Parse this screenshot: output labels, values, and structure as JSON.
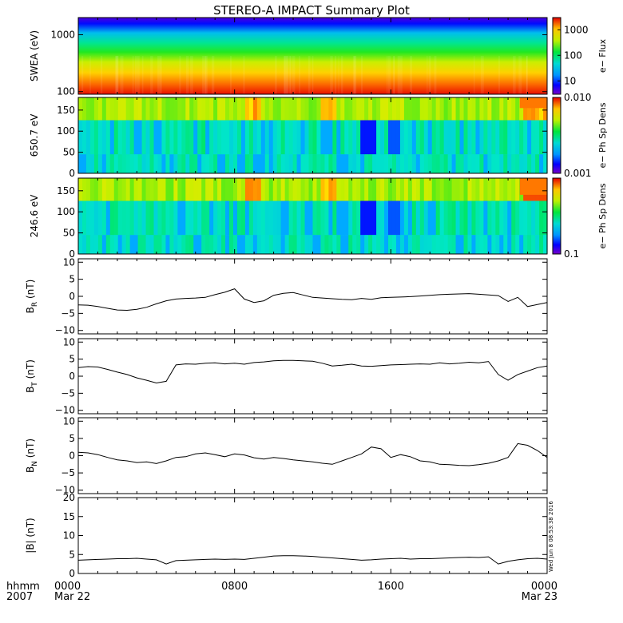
{
  "title": "STEREO-A IMPACT Summary Plot",
  "footer": {
    "format_label": "hhmm",
    "year_label": "2007",
    "stamp": "Wed Jun  8 08:53:38 2016"
  },
  "chart_data": [
    {
      "type": "heatmap",
      "id": "swea",
      "ylabel": "SWEA (eV)",
      "yscale": "log",
      "ylim": [
        90,
        2000
      ],
      "yticks": [
        {
          "value": 1000,
          "label": "1000"
        },
        {
          "value": 100,
          "label": "100"
        }
      ],
      "colorbar": {
        "label": "e− Flux",
        "scale": "log",
        "range": [
          3,
          3000
        ],
        "ticks": [
          {
            "value": 1000,
            "label": "1000"
          },
          {
            "value": 100,
            "label": "100"
          },
          {
            "value": 10,
            "label": "10"
          }
        ]
      }
    },
    {
      "type": "heatmap",
      "id": "pad650",
      "ylabel": "650.7 eV",
      "ylim": [
        0,
        180
      ],
      "yticks": [
        {
          "value": 150,
          "label": "150"
        },
        {
          "value": 100,
          "label": "100"
        },
        {
          "value": 50,
          "label": "50"
        },
        {
          "value": 0,
          "label": "0"
        }
      ],
      "colorbar": {
        "label": "e− Ph Sp Dens",
        "scale": "log",
        "range": [
          0.001,
          0.01
        ],
        "ticks": [
          {
            "value": 0.01,
            "label": "0.010"
          },
          {
            "value": 0.001,
            "label": "0.001"
          }
        ]
      }
    },
    {
      "type": "heatmap",
      "id": "pad246",
      "ylabel": "246.6 eV",
      "ylim": [
        0,
        180
      ],
      "yticks": [
        {
          "value": 150,
          "label": "150"
        },
        {
          "value": 100,
          "label": "100"
        },
        {
          "value": 50,
          "label": "50"
        },
        {
          "value": 0,
          "label": "0"
        }
      ],
      "colorbar": {
        "label": "e− Ph Sp Dens",
        "scale": "log",
        "range": [
          0.1,
          1
        ],
        "ticks": [
          {
            "value": 0.1,
            "label": "0.1"
          }
        ]
      }
    },
    {
      "type": "line",
      "id": "br",
      "ylabel": "B",
      "ylabel_sub": "R",
      "ylabel_suffix": " (nT)",
      "ylim": [
        -11,
        11
      ],
      "yticks": [
        {
          "value": 10,
          "label": "10"
        },
        {
          "value": 5,
          "label": "5"
        },
        {
          "value": 0,
          "label": "0"
        },
        {
          "value": -5,
          "label": "−5"
        },
        {
          "value": -10,
          "label": "−10"
        }
      ],
      "x_hours": [
        0,
        0.5,
        1,
        1.5,
        2,
        2.5,
        3,
        3.5,
        4,
        4.5,
        5,
        5.5,
        6,
        6.5,
        7,
        7.5,
        8,
        8.5,
        9,
        9.5,
        10,
        10.5,
        11,
        11.5,
        12,
        12.5,
        13,
        13.5,
        14,
        14.5,
        15,
        15.5,
        16,
        16.5,
        17,
        17.5,
        18,
        18.5,
        19,
        19.5,
        20,
        20.5,
        21,
        21.5,
        22,
        22.5,
        23,
        23.5,
        24
      ],
      "y": [
        -2.5,
        -2.6,
        -3.0,
        -3.5,
        -4.0,
        -4.1,
        -3.8,
        -3.2,
        -2.2,
        -1.3,
        -0.8,
        -0.6,
        -0.5,
        -0.3,
        0.5,
        1.2,
        2.2,
        -0.8,
        -1.8,
        -1.3,
        0.3,
        0.9,
        1.1,
        0.4,
        -0.3,
        -0.5,
        -0.7,
        -0.9,
        -1.0,
        -0.6,
        -0.9,
        -0.4,
        -0.3,
        -0.2,
        -0.1,
        0.1,
        0.3,
        0.5,
        0.6,
        0.7,
        0.8,
        0.6,
        0.4,
        0.2,
        -1.5,
        -0.3,
        -3.0,
        -2.4,
        -1.8
      ]
    },
    {
      "type": "line",
      "id": "bt",
      "ylabel": "B",
      "ylabel_sub": "T",
      "ylabel_suffix": " (nT)",
      "ylim": [
        -11,
        11
      ],
      "yticks": [
        {
          "value": 10,
          "label": "10"
        },
        {
          "value": 5,
          "label": "5"
        },
        {
          "value": 0,
          "label": "0"
        },
        {
          "value": -5,
          "label": "−5"
        },
        {
          "value": -10,
          "label": "−10"
        }
      ],
      "x_hours": [
        0,
        0.5,
        1,
        1.5,
        2,
        2.5,
        3,
        3.5,
        4,
        4.5,
        5,
        5.5,
        6,
        6.5,
        7,
        7.5,
        8,
        8.5,
        9,
        9.5,
        10,
        10.5,
        11,
        11.5,
        12,
        12.5,
        13,
        13.5,
        14,
        14.5,
        15,
        15.5,
        16,
        16.5,
        17,
        17.5,
        18,
        18.5,
        19,
        19.5,
        20,
        20.5,
        21,
        21.5,
        22,
        22.5,
        23,
        23.5,
        24
      ],
      "y": [
        2.5,
        2.8,
        2.7,
        2.0,
        1.2,
        0.5,
        -0.5,
        -1.2,
        -2.0,
        -1.5,
        3.3,
        3.6,
        3.5,
        3.8,
        3.9,
        3.6,
        3.8,
        3.5,
        4.0,
        4.2,
        4.5,
        4.6,
        4.6,
        4.5,
        4.4,
        3.8,
        3.0,
        3.2,
        3.5,
        3.0,
        2.9,
        3.1,
        3.3,
        3.4,
        3.5,
        3.6,
        3.5,
        3.9,
        3.6,
        3.8,
        4.1,
        3.9,
        4.3,
        0.5,
        -1.2,
        0.5,
        1.5,
        2.5,
        3.0
      ]
    },
    {
      "type": "line",
      "id": "bn",
      "ylabel": "B",
      "ylabel_sub": "N",
      "ylabel_suffix": " (nT)",
      "ylim": [
        -11,
        11
      ],
      "yticks": [
        {
          "value": 10,
          "label": "10"
        },
        {
          "value": 5,
          "label": "5"
        },
        {
          "value": 0,
          "label": "0"
        },
        {
          "value": -5,
          "label": "−5"
        },
        {
          "value": -10,
          "label": "−10"
        }
      ],
      "x_hours": [
        0,
        0.5,
        1,
        1.5,
        2,
        2.5,
        3,
        3.5,
        4,
        4.5,
        5,
        5.5,
        6,
        6.5,
        7,
        7.5,
        8,
        8.5,
        9,
        9.5,
        10,
        10.5,
        11,
        11.5,
        12,
        12.5,
        13,
        13.5,
        14,
        14.5,
        15,
        15.5,
        16,
        16.5,
        17,
        17.5,
        18,
        18.5,
        19,
        19.5,
        20,
        20.5,
        21,
        21.5,
        22,
        22.5,
        23,
        23.5,
        24
      ],
      "y": [
        1.0,
        0.8,
        0.3,
        -0.5,
        -1.2,
        -1.5,
        -2.0,
        -1.8,
        -2.3,
        -1.5,
        -0.5,
        -0.3,
        0.5,
        0.8,
        0.3,
        -0.3,
        0.5,
        0.2,
        -0.6,
        -1.0,
        -0.5,
        -0.8,
        -1.2,
        -1.5,
        -1.8,
        -2.2,
        -2.5,
        -1.5,
        -0.5,
        0.5,
        2.5,
        2.0,
        -0.5,
        0.3,
        -0.3,
        -1.5,
        -1.8,
        -2.5,
        -2.6,
        -2.8,
        -2.9,
        -2.6,
        -2.2,
        -1.5,
        -0.5,
        3.5,
        3.0,
        1.5,
        -0.5
      ]
    },
    {
      "type": "line",
      "id": "bmag",
      "ylabel": "|B| (nT)",
      "ylim": [
        0,
        20
      ],
      "yticks": [
        {
          "value": 20,
          "label": "20"
        },
        {
          "value": 15,
          "label": "15"
        },
        {
          "value": 10,
          "label": "10"
        },
        {
          "value": 5,
          "label": "5"
        },
        {
          "value": 0,
          "label": "0"
        }
      ],
      "x_hours": [
        0,
        0.5,
        1,
        1.5,
        2,
        2.5,
        3,
        3.5,
        4,
        4.5,
        5,
        5.5,
        6,
        6.5,
        7,
        7.5,
        8,
        8.5,
        9,
        9.5,
        10,
        10.5,
        11,
        11.5,
        12,
        12.5,
        13,
        13.5,
        14,
        14.5,
        15,
        15.5,
        16,
        16.5,
        17,
        17.5,
        18,
        18.5,
        19,
        19.5,
        20,
        20.5,
        21,
        21.5,
        22,
        22.5,
        23,
        23.5,
        24
      ],
      "y": [
        3.5,
        3.6,
        3.7,
        3.8,
        3.9,
        3.9,
        4.0,
        3.8,
        3.6,
        2.5,
        3.4,
        3.5,
        3.6,
        3.7,
        3.8,
        3.7,
        3.8,
        3.7,
        4.0,
        4.3,
        4.6,
        4.7,
        4.7,
        4.6,
        4.5,
        4.3,
        4.1,
        3.9,
        3.7,
        3.5,
        3.6,
        3.8,
        3.9,
        4.0,
        3.8,
        3.9,
        3.9,
        4.0,
        4.1,
        4.2,
        4.3,
        4.2,
        4.4,
        2.5,
        3.2,
        3.6,
        3.9,
        4.0,
        3.8
      ]
    }
  ],
  "x_axis": {
    "ticks": [
      {
        "hour": 0,
        "label": "0000",
        "sublabel": "Mar 22"
      },
      {
        "hour": 8,
        "label": "0800",
        "sublabel": ""
      },
      {
        "hour": 16,
        "label": "1600",
        "sublabel": ""
      },
      {
        "hour": 24,
        "label": "0000",
        "sublabel": "Mar 23"
      }
    ]
  }
}
